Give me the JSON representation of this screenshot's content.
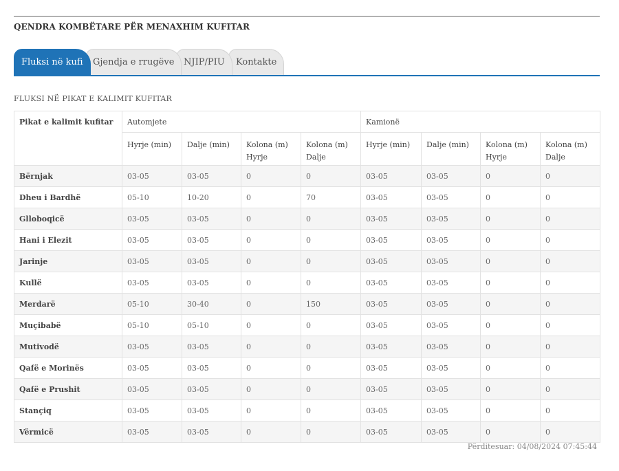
{
  "site": {
    "title": "QENDRA KOMBËTARE PËR MENAXHIM KUFITAR"
  },
  "tabs": [
    {
      "label": "Fluksi në kufi",
      "active": true
    },
    {
      "label": "Gjendja e rrugëve",
      "active": false
    },
    {
      "label": "NJIP/PIU",
      "active": false
    },
    {
      "label": "Kontakte",
      "active": false
    }
  ],
  "colors": {
    "accent": "#1f73b7"
  },
  "section": {
    "title": "FLUKSI NË PIKAT E KALIMIT KUFITAR"
  },
  "table": {
    "corner_header": "Pikat e kalimit kufitar",
    "group_headers": [
      "Automjete",
      "Kamionë"
    ],
    "sub_headers": [
      "Hyrje (min)",
      "Dalje (min)",
      "Kolona (m) Hyrje",
      "Kolona (m) Dalje",
      "Hyrje (min)",
      "Dalje (min)",
      "Kolona (m) Hyrje",
      "Kolona (m) Dalje"
    ],
    "rows": [
      [
        "Bërnjak",
        "03-05",
        "03-05",
        "0",
        "0",
        "03-05",
        "03-05",
        "0",
        "0"
      ],
      [
        "Dheu i Bardhë",
        "05-10",
        "10-20",
        "0",
        "70",
        "03-05",
        "03-05",
        "0",
        "0"
      ],
      [
        "Glloboqicë",
        "03-05",
        "03-05",
        "0",
        "0",
        "03-05",
        "03-05",
        "0",
        "0"
      ],
      [
        "Hani i Elezit",
        "03-05",
        "03-05",
        "0",
        "0",
        "03-05",
        "03-05",
        "0",
        "0"
      ],
      [
        "Jarinje",
        "03-05",
        "03-05",
        "0",
        "0",
        "03-05",
        "03-05",
        "0",
        "0"
      ],
      [
        "Kullë",
        "03-05",
        "03-05",
        "0",
        "0",
        "03-05",
        "03-05",
        "0",
        "0"
      ],
      [
        "Merdarë",
        "05-10",
        "30-40",
        "0",
        "150",
        "03-05",
        "03-05",
        "0",
        "0"
      ],
      [
        "Muçibabë",
        "05-10",
        "05-10",
        "0",
        "0",
        "03-05",
        "03-05",
        "0",
        "0"
      ],
      [
        "Mutivodë",
        "03-05",
        "03-05",
        "0",
        "0",
        "03-05",
        "03-05",
        "0",
        "0"
      ],
      [
        "Qafë e Morinës",
        "03-05",
        "03-05",
        "0",
        "0",
        "03-05",
        "03-05",
        "0",
        "0"
      ],
      [
        "Qafë e Prushit",
        "03-05",
        "03-05",
        "0",
        "0",
        "03-05",
        "03-05",
        "0",
        "0"
      ],
      [
        "Stançiq",
        "03-05",
        "03-05",
        "0",
        "0",
        "03-05",
        "03-05",
        "0",
        "0"
      ],
      [
        "Vërmicë",
        "03-05",
        "03-05",
        "0",
        "0",
        "03-05",
        "03-05",
        "0",
        "0"
      ]
    ]
  },
  "footer": {
    "updated": "Përditesuar: 04/08/2024 07:45:44"
  }
}
